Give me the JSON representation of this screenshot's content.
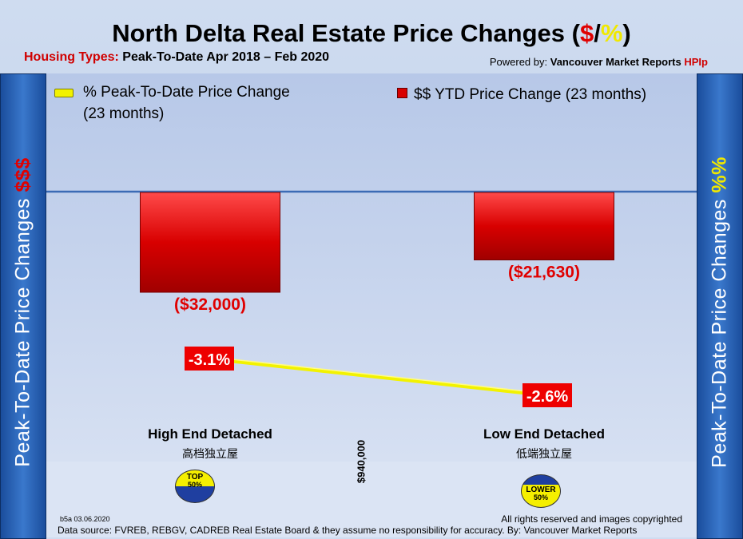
{
  "title": {
    "prefix": "North Delta Real Estate Price Changes (",
    "dollar": "$",
    "slash": "/",
    "pct": "%",
    "suffix": ")"
  },
  "subtitle": {
    "label": "Housing Types:",
    "period": "Peak-To-Date Apr 2018 – Feb 2020"
  },
  "powered": {
    "prefix": "Powered by:",
    "brand": "Vancouver Market Reports",
    "hpi": "HPIp"
  },
  "side_left": {
    "text": "Peak-To-Date Price Changes",
    "symbol": "$$$"
  },
  "side_right": {
    "text": "Peak-To-Date  Price  Changes",
    "symbol": "%%"
  },
  "chart_data": {
    "type": "bar",
    "categories": [
      "High End Detached",
      "Low End Detached"
    ],
    "categories_zh": [
      "高档独立屋",
      "低端独立屋"
    ],
    "series": [
      {
        "name": "$$ YTD Price Change (23 months)",
        "type": "bar",
        "values": [
          -32000,
          -21630
        ],
        "labels": [
          "($32,000)",
          "($21,630)"
        ],
        "color": "#d80000"
      },
      {
        "name": "% Peak-To-Date Price Change (23 months)",
        "type": "line",
        "values": [
          -3.1,
          -2.6
        ],
        "labels": [
          "-3.1%",
          "-2.6%"
        ],
        "color": "#f2f200"
      }
    ],
    "legend": "top",
    "grid": false,
    "divider_label": "$940,000"
  },
  "badges": {
    "top": {
      "line1": "TOP",
      "line2": "50%"
    },
    "low": {
      "line1": "LOWER",
      "line2": "50%"
    }
  },
  "footer": {
    "stamp": "b5a 03.06.2020",
    "rights": "All rights reserved and  images copyrighted",
    "source": "Data source: FVREB, REBGV, CADREB Real Estate Board & they assume no responsibility for accuracy. By: Vancouver Market Reports"
  },
  "colors": {
    "bar": "#d80000",
    "line": "#f2f200",
    "side": "#2a64b8",
    "label_box": "#ee0000"
  }
}
